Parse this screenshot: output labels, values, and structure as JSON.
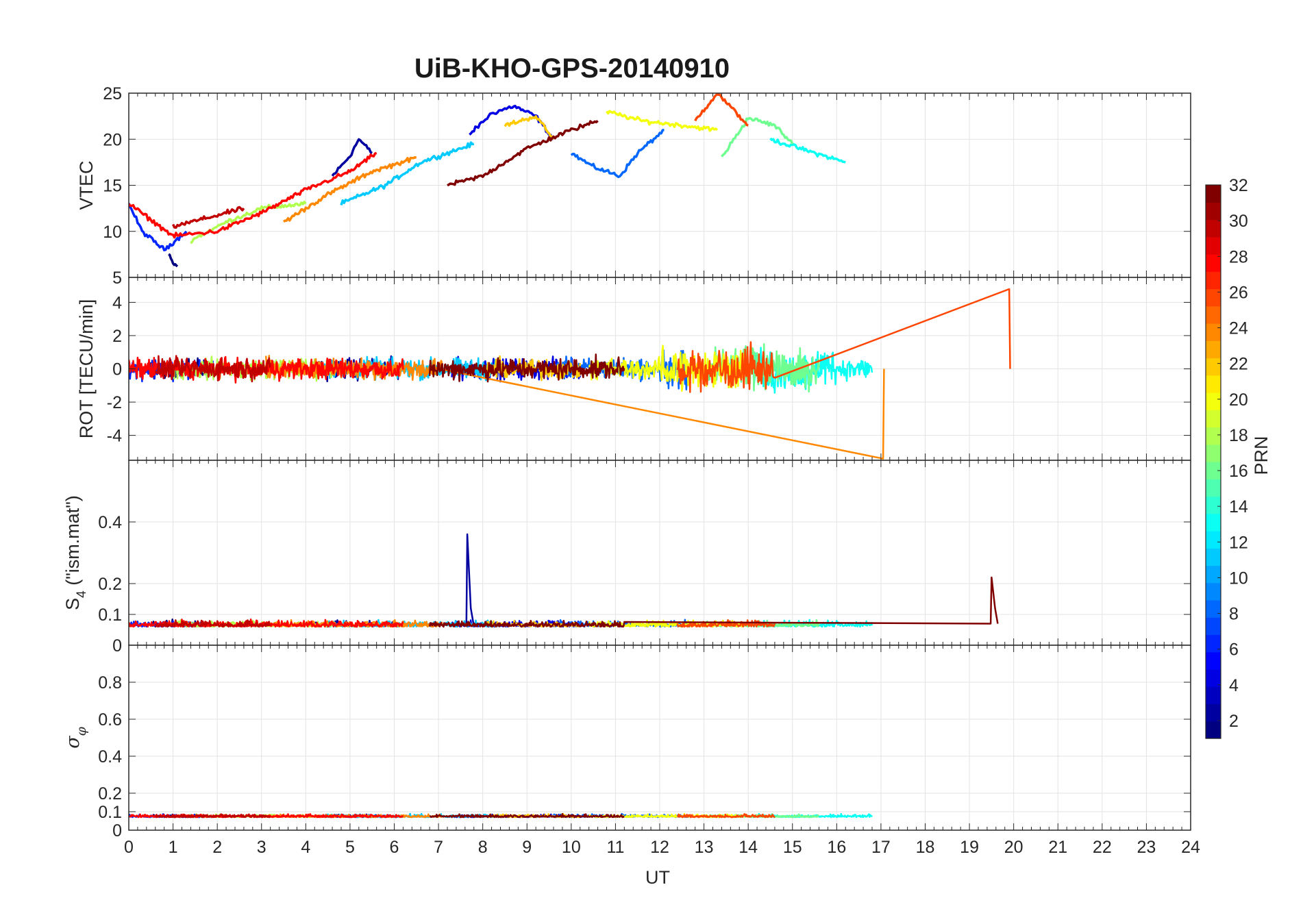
{
  "chart_data": {
    "type": "line",
    "title": "UiB-KHO-GPS-20140910",
    "x": {
      "label": "UT",
      "range": [
        0,
        24
      ],
      "ticks": [
        0,
        1,
        2,
        3,
        4,
        5,
        6,
        7,
        8,
        9,
        10,
        11,
        12,
        13,
        14,
        15,
        16,
        17,
        18,
        19,
        20,
        21,
        22,
        23,
        24
      ]
    },
    "grid": true,
    "panels": [
      {
        "id": "vtec",
        "ylabel": "VTEC",
        "ylim": [
          5,
          25
        ],
        "yticks": [
          5,
          10,
          15,
          20,
          25
        ]
      },
      {
        "id": "rot",
        "ylabel": "ROT [TECU/min]",
        "ylim": [
          -5.5,
          5.5
        ],
        "yticks": [
          -4,
          -2,
          0,
          2,
          4
        ]
      },
      {
        "id": "s4",
        "ylabel_main": "S",
        "ylabel_sub": "4",
        "ylabel_rest": " (\"ism.mat\")",
        "ylim": [
          0,
          0.6
        ],
        "yticks": [
          0,
          0.1,
          0.2,
          0.4
        ]
      },
      {
        "id": "sigphi",
        "ylabel_main": "σ",
        "ylabel_sub": "φ",
        "ylim": [
          0,
          1
        ],
        "yticks": [
          0,
          0.1,
          0.2,
          0.4,
          0.6,
          0.8
        ]
      }
    ],
    "colorbar": {
      "label": "PRN",
      "range": [
        1,
        32
      ],
      "ticks": [
        2,
        4,
        6,
        8,
        10,
        12,
        14,
        16,
        18,
        20,
        22,
        24,
        26,
        28,
        30,
        32
      ],
      "colormap": "jet"
    },
    "series_key_points": [
      {
        "prn": 1,
        "vtec": [
          [
            0.9,
            7.5
          ],
          [
            1.0,
            6.5
          ],
          [
            1.1,
            6.2
          ]
        ]
      },
      {
        "prn": 2,
        "vtec": [
          [
            4.6,
            16
          ],
          [
            5.0,
            18.2
          ],
          [
            5.2,
            20
          ],
          [
            5.5,
            18.5
          ]
        ],
        "s4_peak": [
          7.65,
          0.36
        ]
      },
      {
        "prn": 4,
        "vtec": [
          [
            7.7,
            20.5
          ],
          [
            8.2,
            22.8
          ],
          [
            8.7,
            23.6
          ],
          [
            9.2,
            22.5
          ],
          [
            9.6,
            20
          ]
        ]
      },
      {
        "prn": 6,
        "vtec": [
          [
            0,
            13
          ],
          [
            0.3,
            10
          ],
          [
            0.8,
            8
          ],
          [
            1.3,
            10
          ]
        ]
      },
      {
        "prn": 8,
        "vtec": [
          [
            10,
            18.5
          ],
          [
            10.5,
            17
          ],
          [
            11.1,
            16
          ],
          [
            11.5,
            18.5
          ],
          [
            12.1,
            21
          ]
        ]
      },
      {
        "prn": 11,
        "vtec": [
          [
            4.8,
            13
          ],
          [
            5.8,
            15
          ],
          [
            6.6,
            17.5
          ],
          [
            7.2,
            18.5
          ],
          [
            7.8,
            19.5
          ]
        ]
      },
      {
        "prn": 13,
        "vtec": [
          [
            14.5,
            20
          ],
          [
            15.3,
            18.8
          ],
          [
            16.2,
            17.5
          ]
        ]
      },
      {
        "prn": 16,
        "vtec": [
          [
            13.4,
            18
          ],
          [
            14.0,
            22.3
          ],
          [
            14.6,
            21.5
          ],
          [
            15.0,
            19.5
          ]
        ]
      },
      {
        "prn": 18,
        "vtec": [
          [
            1.4,
            9
          ],
          [
            2.2,
            11
          ],
          [
            3.0,
            12.5
          ],
          [
            4.0,
            13
          ]
        ]
      },
      {
        "prn": 20,
        "vtec": [
          [
            10.8,
            23
          ],
          [
            11.6,
            22
          ],
          [
            12.5,
            21.5
          ],
          [
            13.3,
            21
          ]
        ]
      },
      {
        "prn": 22,
        "vtec": [
          [
            8.5,
            21.5
          ],
          [
            9.2,
            22.5
          ],
          [
            9.6,
            20
          ]
        ]
      },
      {
        "prn": 24,
        "vtec": [
          [
            3.5,
            11
          ],
          [
            4.5,
            14
          ],
          [
            5.5,
            16.5
          ],
          [
            6.5,
            18
          ]
        ],
        "rot_min": [
          17.05,
          -5.4
        ]
      },
      {
        "prn": 26,
        "vtec": [
          [
            12.8,
            22
          ],
          [
            13.3,
            25
          ],
          [
            13.7,
            23
          ],
          [
            14.0,
            21.5
          ]
        ],
        "rot_max": [
          19.9,
          4.8
        ]
      },
      {
        "prn": 28,
        "vtec": [
          [
            0,
            13
          ],
          [
            1.0,
            9.5
          ],
          [
            2.0,
            10
          ],
          [
            3.0,
            12
          ],
          [
            4.0,
            14.5
          ],
          [
            5.0,
            16.5
          ],
          [
            5.6,
            18.5
          ]
        ]
      },
      {
        "prn": 30,
        "vtec": [
          [
            1,
            10.5
          ],
          [
            1.8,
            11.5
          ],
          [
            2.6,
            12.5
          ]
        ]
      },
      {
        "prn": 32,
        "vtec": [
          [
            7.2,
            15
          ],
          [
            8.0,
            16
          ],
          [
            9.0,
            19
          ],
          [
            10.0,
            21
          ],
          [
            10.6,
            22
          ]
        ],
        "s4_peak": [
          19.5,
          0.22
        ]
      }
    ]
  }
}
